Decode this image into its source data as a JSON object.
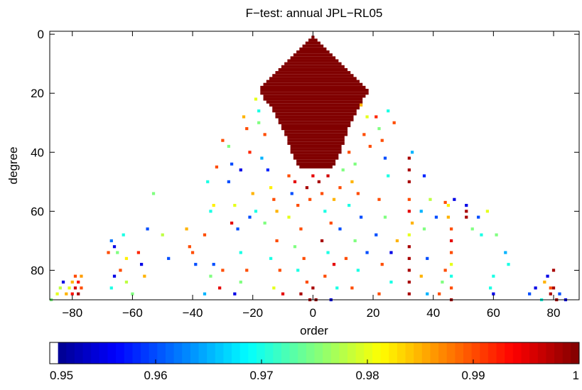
{
  "chart_data": {
    "type": "heatmap",
    "title": "F−test: annual JPL−RL05",
    "xlabel": "order",
    "ylabel": "degree",
    "xlim": [
      -87.5,
      88.5
    ],
    "ylim": [
      -1,
      90
    ],
    "y_reversed": true,
    "xticks": [
      {
        "value": -80,
        "label": "−80"
      },
      {
        "value": -60,
        "label": "−60"
      },
      {
        "value": -40,
        "label": "−40"
      },
      {
        "value": -20,
        "label": "−20"
      },
      0,
      20,
      40,
      60,
      80
    ],
    "yticks": [
      0,
      20,
      40,
      60,
      80
    ],
    "colormap": "jet",
    "clim": [
      0.95,
      1
    ],
    "cbar_ticks": [
      0.95,
      0.96,
      0.97,
      0.98,
      0.99,
      1
    ],
    "cbar_bins": 64,
    "core_value": 1,
    "core": [
      [
        1,
        0,
        0
      ],
      [
        2,
        -1,
        1
      ],
      [
        3,
        -2,
        2
      ],
      [
        4,
        -3,
        3
      ],
      [
        5,
        -4,
        4
      ],
      [
        6,
        -5,
        5
      ],
      [
        7,
        -6,
        6
      ],
      [
        8,
        -7,
        7
      ],
      [
        9,
        -8,
        8
      ],
      [
        10,
        -9,
        9
      ],
      [
        11,
        -10,
        10
      ],
      [
        12,
        -11,
        11
      ],
      [
        13,
        -12,
        12
      ],
      [
        14,
        -13,
        13
      ],
      [
        15,
        -14,
        14
      ],
      [
        16,
        -15,
        15
      ],
      [
        17,
        -16,
        16
      ],
      [
        18,
        -17,
        17
      ],
      [
        19,
        -17,
        18
      ],
      [
        20,
        -17,
        18
      ],
      [
        21,
        -16,
        17
      ],
      [
        22,
        -16,
        16
      ],
      [
        23,
        -15,
        16
      ],
      [
        24,
        -14,
        15
      ],
      [
        25,
        -13,
        15
      ],
      [
        26,
        -13,
        14
      ],
      [
        27,
        -12,
        14
      ],
      [
        28,
        -12,
        13
      ],
      [
        29,
        -11,
        13
      ],
      [
        30,
        -11,
        12
      ],
      [
        31,
        -10,
        12
      ],
      [
        32,
        -10,
        11
      ],
      [
        33,
        -9,
        11
      ],
      [
        34,
        -9,
        11
      ],
      [
        35,
        -8,
        10
      ],
      [
        36,
        -8,
        10
      ],
      [
        37,
        -8,
        10
      ],
      [
        38,
        -7,
        9
      ],
      [
        39,
        -7,
        9
      ],
      [
        40,
        -7,
        9
      ],
      [
        41,
        -6,
        8
      ],
      [
        42,
        -6,
        8
      ],
      [
        43,
        -5,
        7
      ],
      [
        44,
        -5,
        7
      ],
      [
        45,
        -4,
        6
      ]
    ],
    "points": [
      [
        -79,
        82,
        0.99
      ],
      [
        -80,
        84,
        0.985
      ],
      [
        -78,
        84,
        0.993
      ],
      [
        -81,
        86,
        0.98
      ],
      [
        -79,
        86,
        0.996
      ],
      [
        -77,
        86,
        0.99
      ],
      [
        -80,
        88,
        0.993
      ],
      [
        -78,
        88,
        0.998
      ],
      [
        -82,
        88,
        0.985
      ],
      [
        -84,
        86,
        0.978
      ],
      [
        -85,
        88,
        0.98
      ],
      [
        -83,
        84,
        0.955
      ],
      [
        -87,
        90,
        0.975
      ],
      [
        -77,
        82,
        0.986
      ],
      [
        -67,
        70,
        0.962
      ],
      [
        -66,
        72,
        0.955
      ],
      [
        -68,
        74,
        0.99
      ],
      [
        -65,
        74,
        0.975
      ],
      [
        -63,
        68,
        0.97
      ],
      [
        -62,
        76,
        0.982
      ],
      [
        -64,
        80,
        0.99
      ],
      [
        -66,
        82,
        0.955
      ],
      [
        -67,
        86,
        0.97
      ],
      [
        -62,
        84,
        0.978
      ],
      [
        -60,
        88,
        0.975
      ],
      [
        -58,
        74,
        0.992
      ],
      [
        -57,
        78,
        0.955
      ],
      [
        -56,
        82,
        0.985
      ],
      [
        -55,
        66,
        0.96
      ],
      [
        -53,
        54,
        0.975
      ],
      [
        -50,
        68,
        0.978
      ],
      [
        -48,
        76,
        0.96
      ],
      [
        -42,
        66,
        0.985
      ],
      [
        -41,
        72,
        0.99
      ],
      [
        -40,
        74,
        0.99
      ],
      [
        -39,
        78,
        0.96
      ],
      [
        -36,
        88,
        0.965
      ],
      [
        -34,
        82,
        0.975
      ],
      [
        -36,
        68,
        0.99
      ],
      [
        -33,
        78,
        0.96
      ],
      [
        -31,
        86,
        0.995
      ],
      [
        -30,
        80,
        0.99
      ],
      [
        -35,
        50,
        0.97
      ],
      [
        -33,
        58,
        0.982
      ],
      [
        -32,
        45,
        0.99
      ],
      [
        -34,
        60,
        0.97
      ],
      [
        -30,
        36,
        0.99
      ],
      [
        -28,
        38,
        0.975
      ],
      [
        -27,
        44,
        0.96
      ],
      [
        -28,
        50,
        0.96
      ],
      [
        -26,
        58,
        0.98
      ],
      [
        -27,
        64,
        0.995
      ],
      [
        -25,
        66,
        0.96
      ],
      [
        -24,
        74,
        0.97
      ],
      [
        -22,
        80,
        0.99
      ],
      [
        -24,
        84,
        0.975
      ],
      [
        -26,
        88,
        0.955
      ],
      [
        -21,
        62,
        0.96
      ],
      [
        -19,
        60,
        0.97
      ],
      [
        -22,
        32,
        0.99
      ],
      [
        -23,
        28,
        0.985
      ],
      [
        -21,
        40,
        0.992
      ],
      [
        -24,
        46,
        0.955
      ],
      [
        -20,
        54,
        0.985
      ],
      [
        -18,
        30,
        0.975
      ],
      [
        -16,
        34,
        0.99
      ],
      [
        -17,
        42,
        0.965
      ],
      [
        -15,
        46,
        0.958
      ],
      [
        -14,
        52,
        0.982
      ],
      [
        -13,
        56,
        0.99
      ],
      [
        -16,
        64,
        0.975
      ],
      [
        -12,
        70,
        0.99
      ],
      [
        -14,
        76,
        0.97
      ],
      [
        -11,
        80,
        0.99
      ],
      [
        -13,
        86,
        0.98
      ],
      [
        -10,
        88,
        0.995
      ],
      [
        -18,
        26,
        0.97
      ],
      [
        -19,
        22,
        0.98
      ],
      [
        -12,
        60,
        0.985
      ],
      [
        -8,
        48,
        0.99
      ],
      [
        -6,
        50,
        0.995
      ],
      [
        -7,
        54,
        0.96
      ],
      [
        -5,
        58,
        0.99
      ],
      [
        -8,
        62,
        0.98
      ],
      [
        -4,
        66,
        0.99
      ],
      [
        -6,
        72,
        0.975
      ],
      [
        -3,
        76,
        0.99
      ],
      [
        -5,
        80,
        0.97
      ],
      [
        -2,
        84,
        0.99
      ],
      [
        -4,
        88,
        0.998
      ],
      [
        -2,
        52,
        0.998
      ],
      [
        0,
        48,
        0.995
      ],
      [
        -1,
        56,
        0.99
      ],
      [
        1,
        90,
        0.999
      ],
      [
        0,
        86,
        0.998
      ],
      [
        -1,
        90,
        0.998
      ],
      [
        2,
        50,
        0.998
      ],
      [
        3,
        54,
        0.99
      ],
      [
        5,
        48,
        0.996
      ],
      [
        4,
        60,
        0.97
      ],
      [
        6,
        64,
        0.99
      ],
      [
        3,
        70,
        0.998
      ],
      [
        5,
        74,
        0.97
      ],
      [
        7,
        78,
        0.995
      ],
      [
        4,
        82,
        0.99
      ],
      [
        8,
        86,
        0.97
      ],
      [
        9,
        52,
        0.99
      ],
      [
        7,
        56,
        0.985
      ],
      [
        10,
        46,
        0.975
      ],
      [
        9,
        66,
        0.96
      ],
      [
        6,
        90,
        0.955
      ],
      [
        12,
        40,
        0.99
      ],
      [
        14,
        44,
        0.975
      ],
      [
        13,
        50,
        0.985
      ],
      [
        15,
        54,
        0.99
      ],
      [
        12,
        58,
        0.97
      ],
      [
        16,
        62,
        0.96
      ],
      [
        14,
        70,
        0.975
      ],
      [
        11,
        76,
        0.99
      ],
      [
        15,
        80,
        0.97
      ],
      [
        13,
        86,
        0.99
      ],
      [
        18,
        28,
        0.98
      ],
      [
        17,
        34,
        0.99
      ],
      [
        19,
        38,
        0.99
      ],
      [
        16,
        24,
        0.985
      ],
      [
        18,
        74,
        0.96
      ],
      [
        21,
        28,
        0.992
      ],
      [
        22,
        32,
        0.975
      ],
      [
        23,
        36,
        0.99
      ],
      [
        24,
        42,
        0.96
      ],
      [
        25,
        48,
        0.97
      ],
      [
        22,
        56,
        0.99
      ],
      [
        24,
        62,
        0.975
      ],
      [
        21,
        68,
        0.96
      ],
      [
        23,
        78,
        0.99
      ],
      [
        26,
        84,
        0.97
      ],
      [
        22,
        88,
        0.99
      ],
      [
        27,
        30,
        0.99
      ],
      [
        25,
        26,
        0.97
      ],
      [
        28,
        70,
        0.985
      ],
      [
        26,
        74,
        0.955
      ],
      [
        32,
        42,
        0.998
      ],
      [
        32,
        46,
        0.998
      ],
      [
        32,
        50,
        0.998
      ],
      [
        33,
        40,
        0.965
      ],
      [
        32,
        56,
        0.99
      ],
      [
        32,
        60,
        0.995
      ],
      [
        33,
        64,
        0.985
      ],
      [
        32,
        68,
        0.98
      ],
      [
        32,
        72,
        0.998
      ],
      [
        32,
        76,
        0.998
      ],
      [
        32,
        80,
        0.998
      ],
      [
        32,
        84,
        0.998
      ],
      [
        32,
        88,
        0.998
      ],
      [
        36,
        60,
        0.965
      ],
      [
        37,
        66,
        0.975
      ],
      [
        38,
        76,
        0.96
      ],
      [
        36,
        82,
        0.985
      ],
      [
        38,
        88,
        0.965
      ],
      [
        37,
        48,
        0.958
      ],
      [
        39,
        56,
        0.978
      ],
      [
        41,
        62,
        0.96
      ],
      [
        44,
        57,
        0.99
      ],
      [
        45,
        62,
        0.985
      ],
      [
        46,
        66,
        0.99
      ],
      [
        46,
        70,
        0.995
      ],
      [
        46,
        74,
        0.99
      ],
      [
        46,
        78,
        0.98
      ],
      [
        46,
        82,
        0.97
      ],
      [
        46,
        86,
        0.99
      ],
      [
        46,
        90,
        0.998
      ],
      [
        47,
        56,
        0.955
      ],
      [
        44,
        80,
        0.99
      ],
      [
        43,
        84,
        0.975
      ],
      [
        42,
        88,
        0.99
      ],
      [
        45,
        58,
        0.982
      ],
      [
        51,
        58,
        0.955
      ],
      [
        51,
        60,
        0.998
      ],
      [
        51,
        62,
        0.998
      ],
      [
        53,
        66,
        0.975
      ],
      [
        55,
        62,
        0.96
      ],
      [
        56,
        68,
        0.97
      ],
      [
        58,
        60,
        0.98
      ],
      [
        61,
        68,
        0.975
      ],
      [
        60,
        82,
        0.97
      ],
      [
        59,
        86,
        0.97
      ],
      [
        60,
        88,
        0.955
      ],
      [
        64,
        74,
        0.965
      ],
      [
        65,
        78,
        0.97
      ],
      [
        72,
        88,
        0.96
      ],
      [
        74,
        86,
        0.955
      ],
      [
        77,
        84,
        0.985
      ],
      [
        78,
        82,
        0.955
      ],
      [
        79,
        86,
        0.99
      ],
      [
        79,
        88,
        0.998
      ],
      [
        80,
        80,
        0.998
      ],
      [
        80,
        86,
        0.998
      ],
      [
        81,
        90,
        0.998
      ],
      [
        82,
        88,
        0.96
      ],
      [
        84,
        90,
        0.955
      ],
      [
        76,
        90,
        0.97
      ]
    ]
  }
}
